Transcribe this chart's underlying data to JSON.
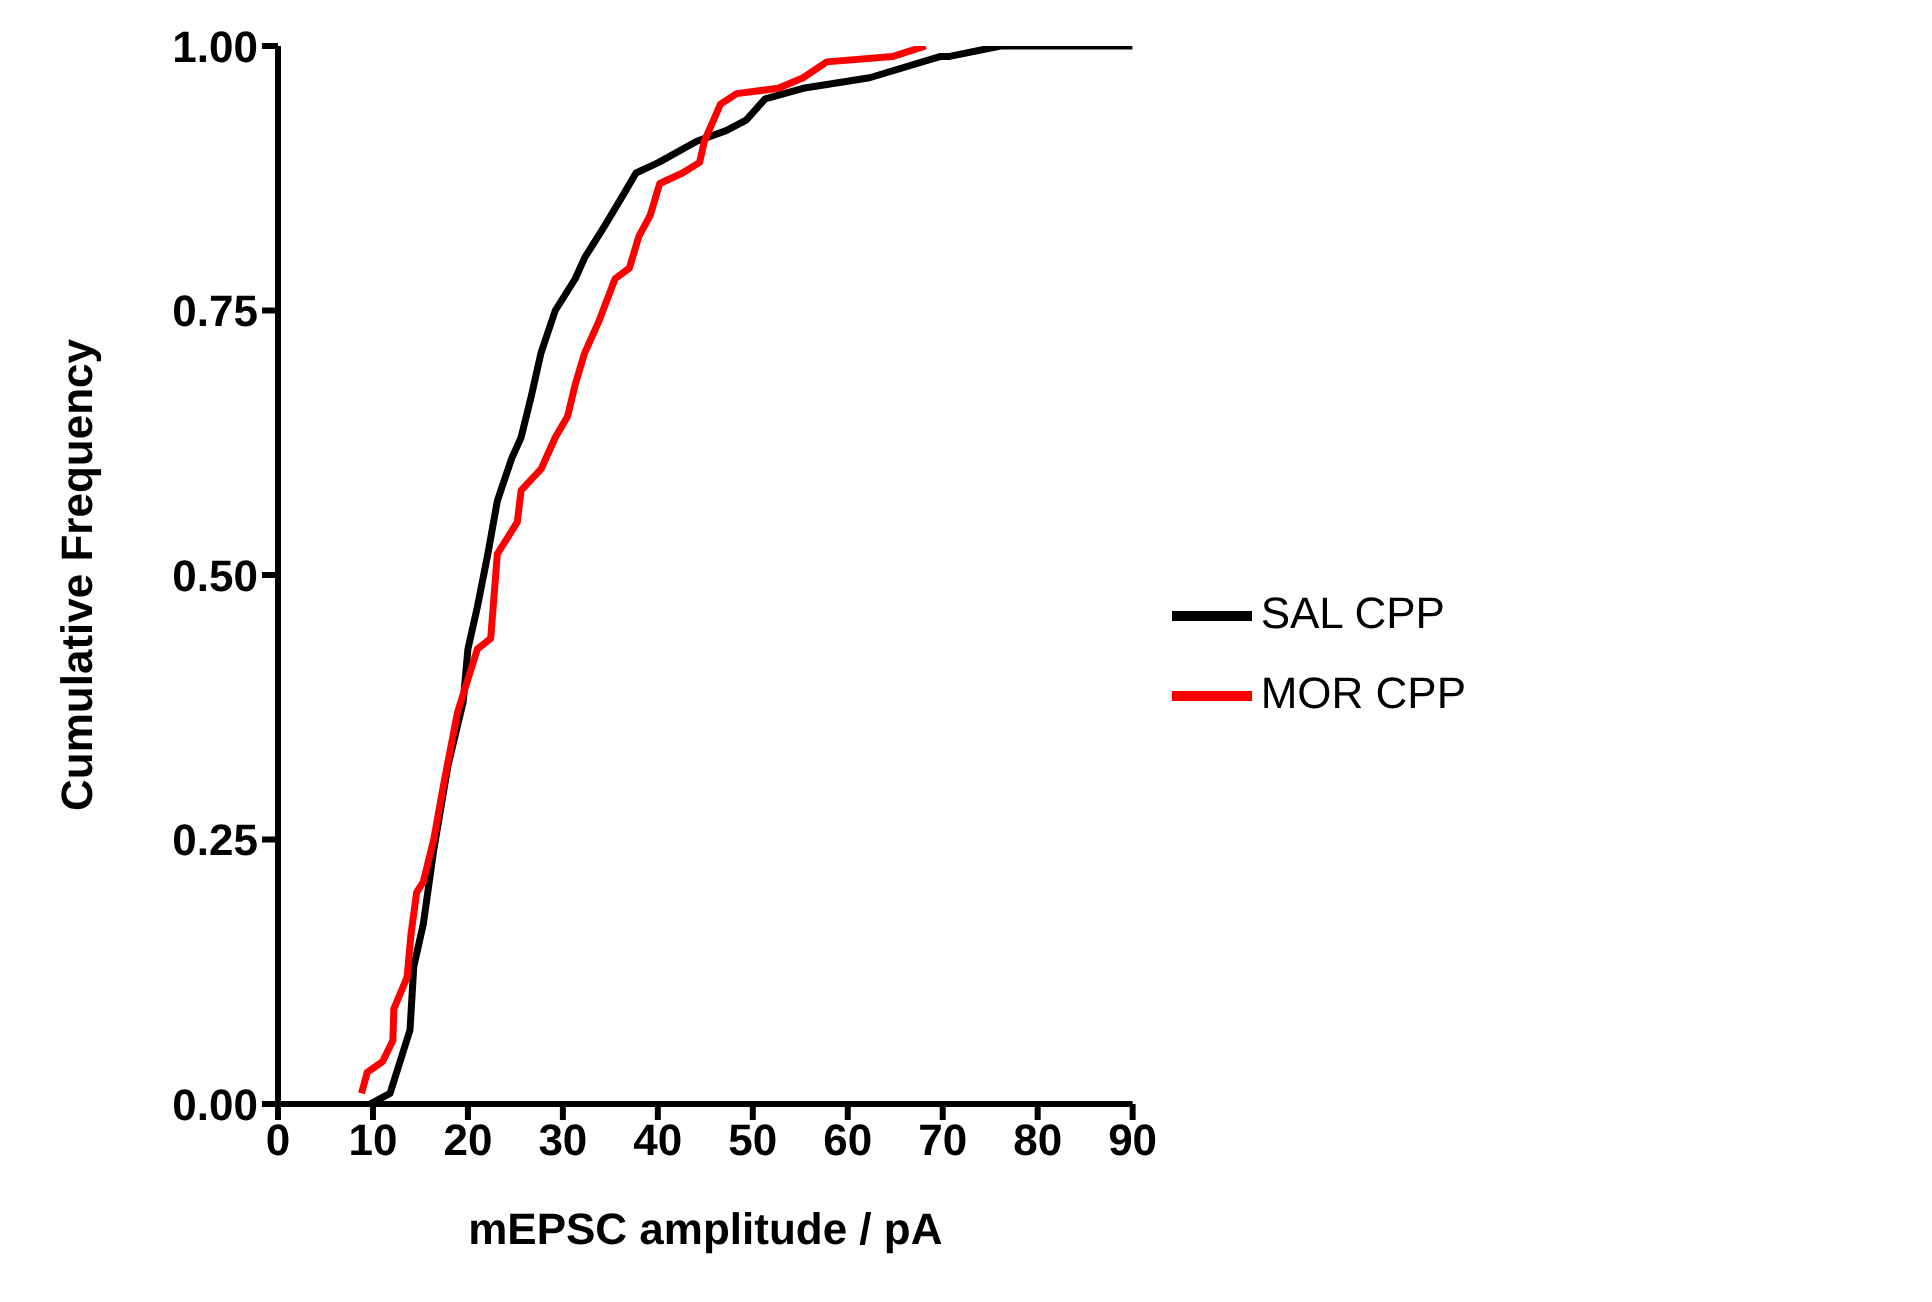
{
  "chart_data": {
    "type": "line",
    "xlabel": "mEPSC amplitude  / pA",
    "ylabel": "Cumulative Frequency",
    "xlim": [
      0,
      90
    ],
    "xticks": [
      0,
      10,
      20,
      30,
      40,
      50,
      60,
      70,
      80,
      90
    ],
    "ylim": [
      0,
      1
    ],
    "yticks": [
      {
        "value": 0,
        "label": "0.00"
      },
      {
        "value": 0.25,
        "label": "0.25"
      },
      {
        "value": 0.5,
        "label": "0.50"
      },
      {
        "value": 0.75,
        "label": "0.75"
      },
      {
        "value": 1,
        "label": "1.00"
      }
    ],
    "grid": false,
    "legend": "right",
    "marker": "none",
    "line_style": "solid",
    "series": [
      {
        "name": "SAL CPP",
        "color": "#000000",
        "x": [
          9.7,
          11.8,
          13.9,
          14.3,
          15.3,
          16.4,
          17.9,
          19.5,
          20.0,
          21.0,
          22.1,
          23.1,
          24.6,
          25.6,
          26.7,
          27.7,
          29.2,
          31.3,
          32.3,
          34.4,
          36.4,
          37.7,
          40.1,
          44.1,
          47.2,
          49.3,
          51.3,
          55.3,
          62.3,
          69.7,
          70.6,
          76.1,
          90
        ],
        "values": [
          0,
          0.01,
          0.07,
          0.13,
          0.17,
          0.24,
          0.32,
          0.38,
          0.43,
          0.47,
          0.52,
          0.57,
          0.61,
          0.63,
          0.67,
          0.71,
          0.75,
          0.78,
          0.8,
          0.83,
          0.86,
          0.88,
          0.89,
          0.91,
          0.92,
          0.93,
          0.95,
          0.96,
          0.97,
          0.99,
          0.99,
          1,
          1
        ]
      },
      {
        "name": "MOR CPP",
        "color": "#ff0000",
        "x": [
          8.8,
          9.4,
          11.0,
          12.1,
          12.2,
          13.6,
          14.0,
          14.6,
          15.3,
          16.4,
          17.4,
          18.9,
          21.0,
          22.4,
          23.1,
          25.2,
          25.6,
          27.7,
          29.2,
          30.5,
          31.3,
          32.3,
          33.8,
          35.5,
          37.0,
          38.0,
          39.2,
          40.2,
          42.6,
          44.4,
          44.9,
          46.6,
          48.3,
          52.7,
          55.3,
          57.8,
          64.7,
          68.2
        ],
        "values": [
          0.01,
          0.03,
          0.04,
          0.06,
          0.09,
          0.12,
          0.16,
          0.2,
          0.21,
          0.25,
          0.3,
          0.37,
          0.43,
          0.44,
          0.52,
          0.55,
          0.58,
          0.6,
          0.63,
          0.65,
          0.68,
          0.71,
          0.74,
          0.78,
          0.79,
          0.82,
          0.84,
          0.87,
          0.88,
          0.89,
          0.91,
          0.945,
          0.955,
          0.96,
          0.97,
          0.985,
          0.99,
          1
        ]
      }
    ]
  }
}
